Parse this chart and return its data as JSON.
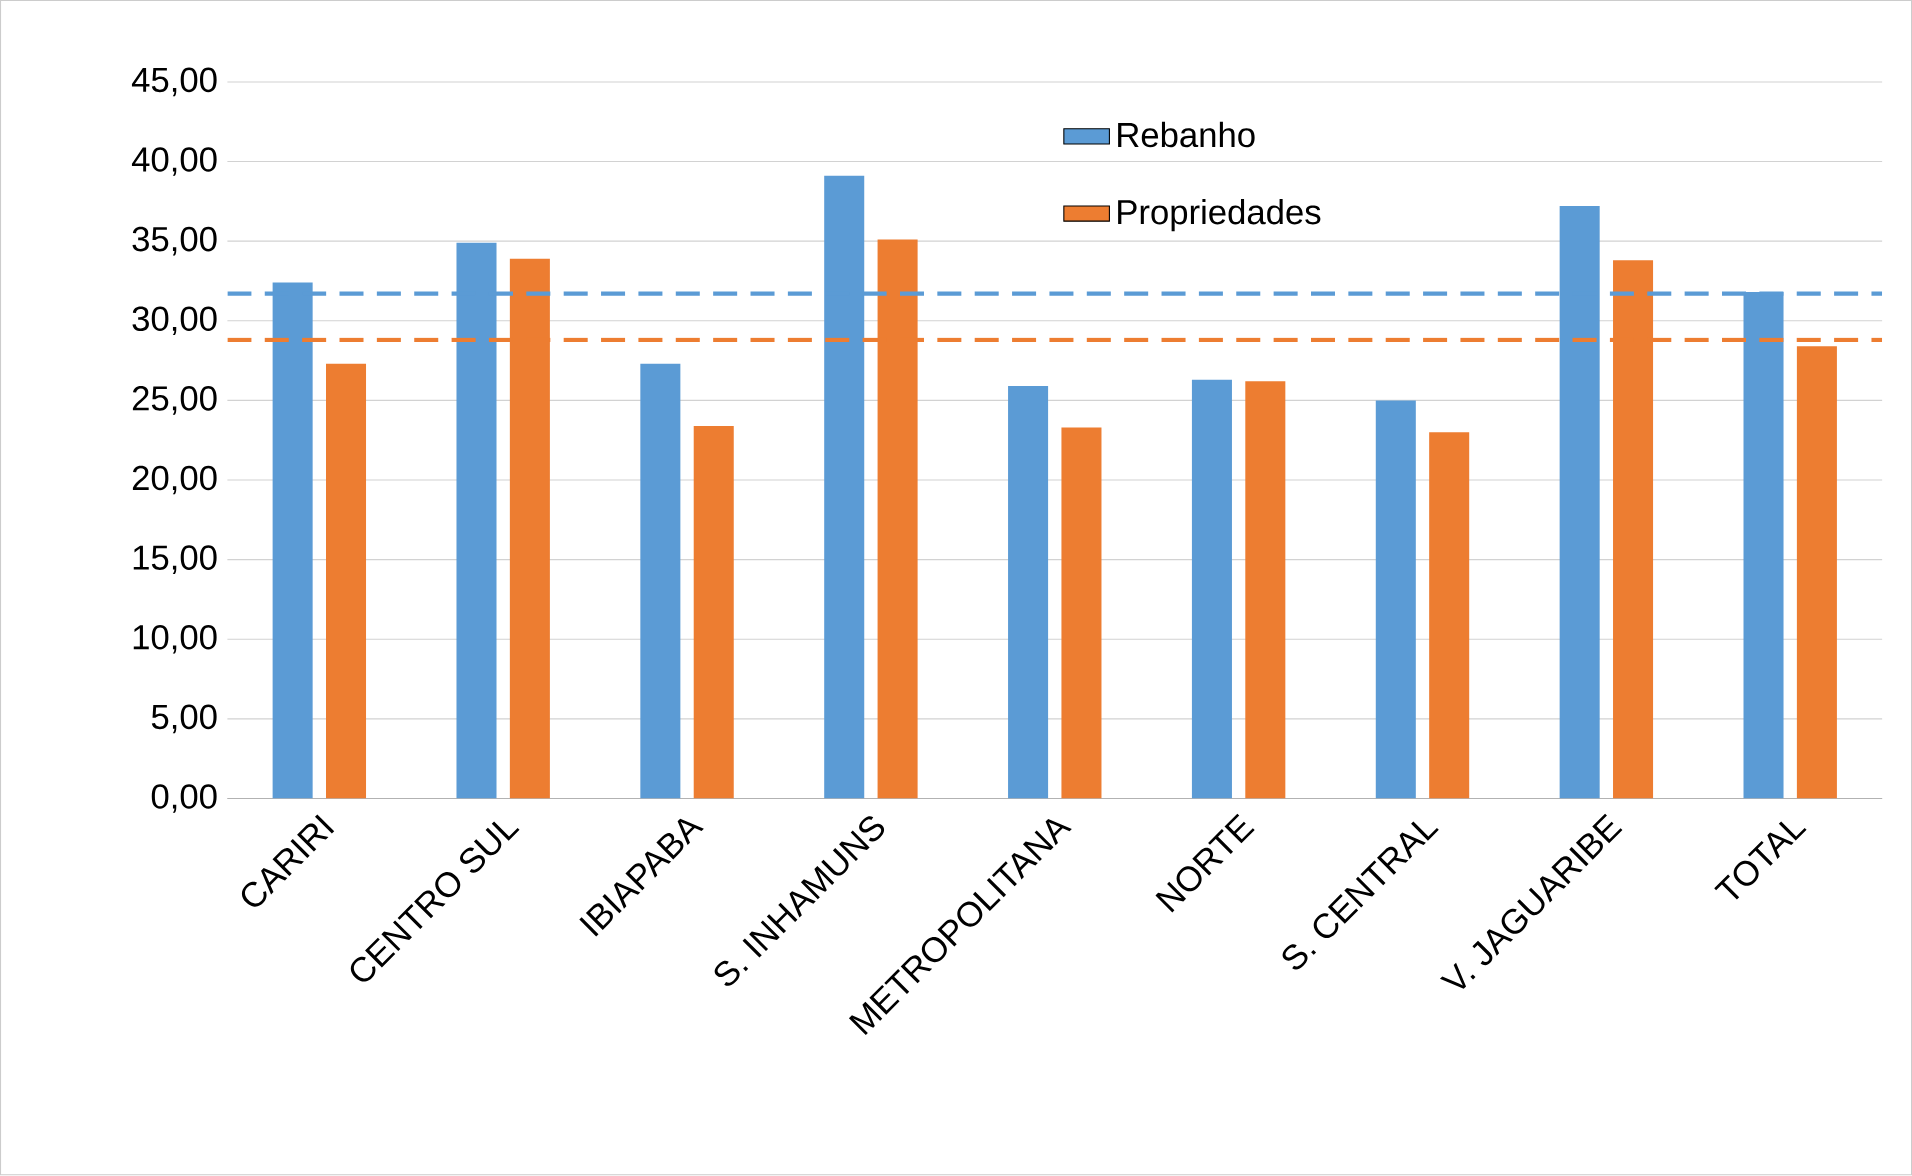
{
  "chart_data": {
    "type": "bar",
    "categories": [
      "CARIRI",
      "CENTRO SUL",
      "IBIAPABA",
      "S. INHAMUNS",
      "METROPOLITANA",
      "NORTE",
      "S. CENTRAL",
      "V. JAGUARIBE",
      "TOTAL"
    ],
    "series": [
      {
        "name": "Rebanho",
        "color": "#5b9bd5",
        "values": [
          32.4,
          34.9,
          27.3,
          39.1,
          25.9,
          26.3,
          25.0,
          37.2,
          31.8
        ]
      },
      {
        "name": "Propriedades",
        "color": "#ed7d31",
        "values": [
          27.3,
          33.9,
          23.4,
          35.1,
          23.3,
          26.2,
          23.0,
          33.8,
          28.4
        ]
      }
    ],
    "ylim": [
      0,
      45
    ],
    "yticks": [
      {
        "value": 0,
        "label": "0,00"
      },
      {
        "value": 5,
        "label": "5,00"
      },
      {
        "value": 10,
        "label": "10,00"
      },
      {
        "value": 15,
        "label": "15,00"
      },
      {
        "value": 20,
        "label": "20,00"
      },
      {
        "value": 25,
        "label": "25,00"
      },
      {
        "value": 30,
        "label": "30,00"
      },
      {
        "value": 35,
        "label": "35,00"
      },
      {
        "value": 40,
        "label": "40,00"
      },
      {
        "value": 45,
        "label": "45,00"
      }
    ],
    "ref_lines": [
      {
        "axis": "y",
        "value": 31.7,
        "color": "#5b9bd5",
        "line_style": "dashed"
      },
      {
        "axis": "y",
        "value": 28.8,
        "color": "#ed7d31",
        "line_style": "dashed"
      }
    ],
    "grid": "y",
    "legend": "top"
  }
}
